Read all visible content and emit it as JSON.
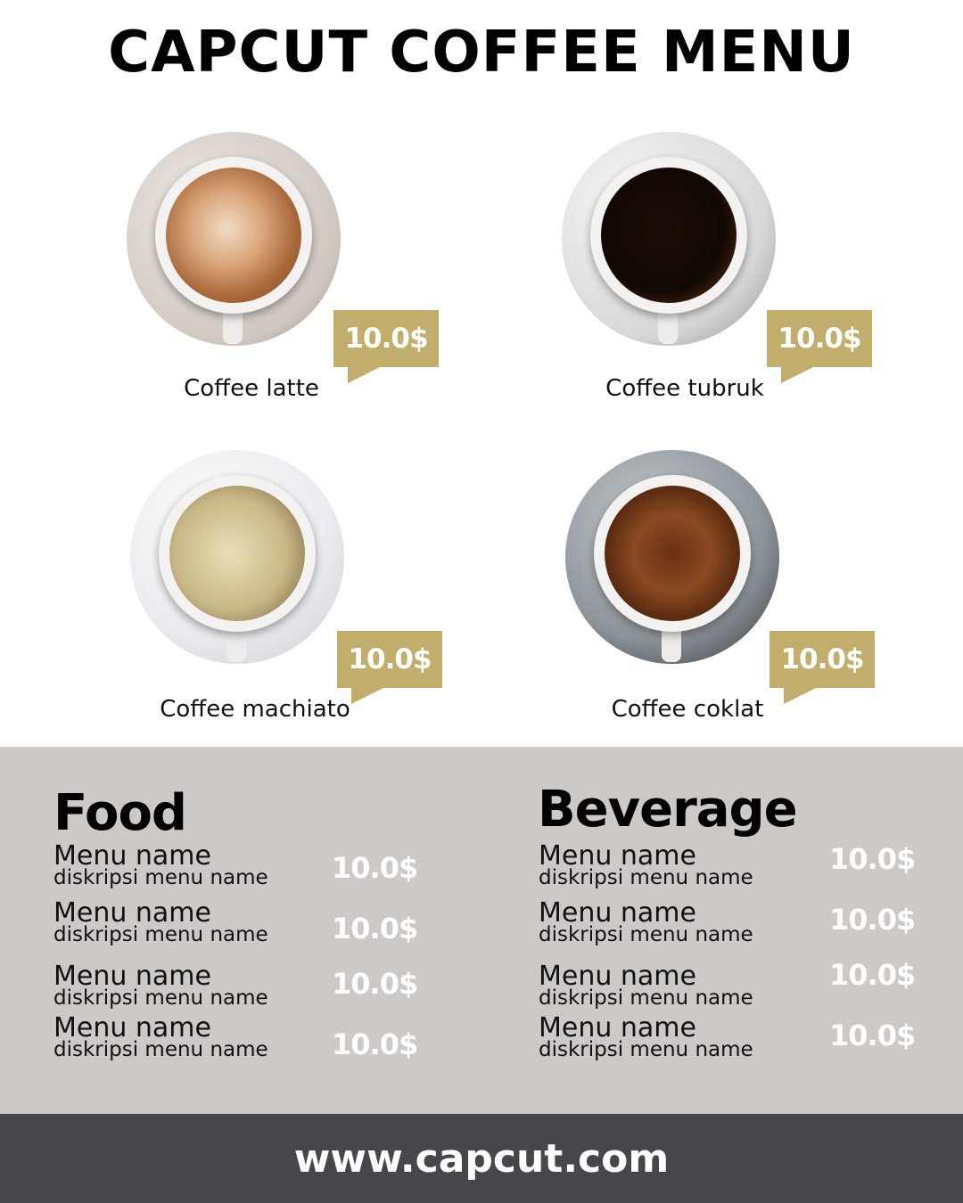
{
  "title": "CAPCUT COFFEE MENU",
  "colors": {
    "accent": "#C2AE6C",
    "panel": "#CCC9C6",
    "footer": "#47464B"
  },
  "coffees": [
    {
      "name": "Coffee latte",
      "price": "10.0$"
    },
    {
      "name": "Coffee tubruk",
      "price": "10.0$"
    },
    {
      "name": "Coffee machiato",
      "price": "10.0$"
    },
    {
      "name": "Coffee coklat",
      "price": "10.0$"
    }
  ],
  "food": {
    "title": "Food",
    "items": [
      {
        "name": "Menu name",
        "desc": "diskripsi menu name",
        "price": "10.0$"
      },
      {
        "name": "Menu name",
        "desc": "diskripsi menu name",
        "price": "10.0$"
      },
      {
        "name": "Menu name",
        "desc": "diskripsi menu name",
        "price": "10.0$"
      },
      {
        "name": "Menu name",
        "desc": "diskripsi menu name",
        "price": "10.0$"
      }
    ]
  },
  "beverage": {
    "title": "Beverage",
    "items": [
      {
        "name": "Menu name",
        "desc": "diskripsi menu name",
        "price": "10.0$"
      },
      {
        "name": "Menu name",
        "desc": "diskripsi menu name",
        "price": "10.0$"
      },
      {
        "name": "Menu name",
        "desc": "diskripsi menu name",
        "price": "10.0$"
      },
      {
        "name": "Menu name",
        "desc": "diskripsi menu name",
        "price": "10.0$"
      }
    ]
  },
  "footer": {
    "url": "www.capcut.com"
  }
}
